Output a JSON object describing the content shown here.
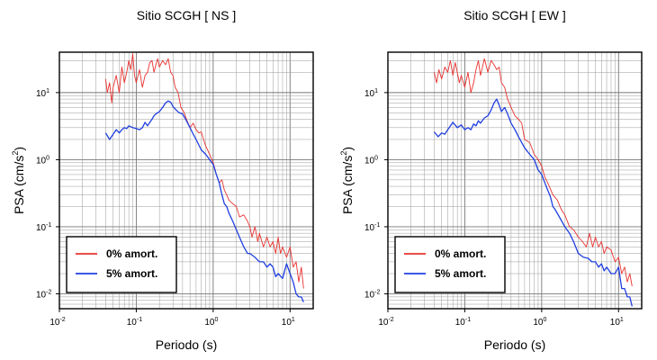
{
  "chart_data": [
    {
      "type": "line",
      "title": "Sitio SCGH [ NS ]",
      "xlabel": "Periodo (s)",
      "ylabel": "PSA (cm/s",
      "ylabel_sup": "2",
      "ylabel_tail": ")",
      "xscale": "log",
      "yscale": "log",
      "xlim": [
        0.01,
        20
      ],
      "ylim": [
        0.006,
        40
      ],
      "x_ticks": [
        {
          "base": "10",
          "exp": "-2"
        },
        {
          "base": "10",
          "exp": "-1"
        },
        {
          "base": "10",
          "exp": "0"
        },
        {
          "base": "10",
          "exp": "1"
        }
      ],
      "y_ticks": [
        {
          "base": "10",
          "exp": "-2"
        },
        {
          "base": "10",
          "exp": "-1"
        },
        {
          "base": "10",
          "exp": "0"
        },
        {
          "base": "10",
          "exp": "1"
        }
      ],
      "grid": true,
      "legend_position": "bottom-left",
      "series": [
        {
          "name": "0% amort.",
          "color": "#e8322f",
          "x": [
            0.04,
            0.042,
            0.045,
            0.048,
            0.05,
            0.055,
            0.06,
            0.065,
            0.07,
            0.075,
            0.08,
            0.085,
            0.09,
            0.095,
            0.1,
            0.11,
            0.12,
            0.13,
            0.14,
            0.15,
            0.16,
            0.17,
            0.18,
            0.19,
            0.2,
            0.22,
            0.24,
            0.26,
            0.28,
            0.3,
            0.32,
            0.35,
            0.38,
            0.42,
            0.45,
            0.5,
            0.55,
            0.6,
            0.65,
            0.7,
            0.75,
            0.8,
            0.9,
            1.0,
            1.1,
            1.2,
            1.3,
            1.4,
            1.5,
            1.6,
            1.8,
            2.0,
            2.2,
            2.5,
            2.8,
            3.0,
            3.2,
            3.5,
            3.8,
            4.0,
            4.5,
            5.0,
            5.5,
            6.0,
            6.5,
            7.0,
            7.5,
            8.0,
            9.0,
            10,
            11,
            12,
            13,
            14,
            15
          ],
          "y": [
            16,
            10,
            14,
            7,
            12,
            18,
            10,
            24,
            14,
            20,
            30,
            22,
            38,
            18,
            14,
            22,
            12,
            18,
            20,
            28,
            30,
            20,
            26,
            32,
            24,
            30,
            26,
            32,
            20,
            18,
            12,
            10,
            6,
            5,
            4,
            3,
            3.5,
            2.8,
            2.5,
            2.6,
            2.0,
            1.6,
            1.2,
            0.9,
            0.6,
            0.45,
            0.5,
            0.35,
            0.3,
            0.25,
            0.22,
            0.2,
            0.14,
            0.15,
            0.12,
            0.1,
            0.07,
            0.1,
            0.06,
            0.08,
            0.05,
            0.07,
            0.05,
            0.06,
            0.04,
            0.07,
            0.04,
            0.05,
            0.035,
            0.05,
            0.025,
            0.03,
            0.015,
            0.025,
            0.012
          ]
        },
        {
          "name": "5% amort.",
          "color": "#1f3fe0",
          "x": [
            0.04,
            0.045,
            0.05,
            0.055,
            0.06,
            0.065,
            0.07,
            0.075,
            0.08,
            0.09,
            0.1,
            0.11,
            0.12,
            0.13,
            0.14,
            0.15,
            0.16,
            0.17,
            0.18,
            0.19,
            0.2,
            0.22,
            0.24,
            0.26,
            0.28,
            0.3,
            0.33,
            0.36,
            0.4,
            0.45,
            0.5,
            0.55,
            0.6,
            0.7,
            0.8,
            0.9,
            1.0,
            1.1,
            1.2,
            1.3,
            1.4,
            1.5,
            1.6,
            1.8,
            2.0,
            2.2,
            2.5,
            2.8,
            3.0,
            3.5,
            4.0,
            4.5,
            5.0,
            5.5,
            6.0,
            6.5,
            7.0,
            8.0,
            9.0,
            10,
            11,
            12,
            13,
            14,
            15
          ],
          "y": [
            2.5,
            2.0,
            2.4,
            2.8,
            2.5,
            2.8,
            3.0,
            2.9,
            3.2,
            3.0,
            2.9,
            2.8,
            3.0,
            3.6,
            3.2,
            3.6,
            4.0,
            4.5,
            4.8,
            5.0,
            5.2,
            6.0,
            7.0,
            7.5,
            7.2,
            6.2,
            5.5,
            5.0,
            4.8,
            3.8,
            3.0,
            2.4,
            2.0,
            1.4,
            1.2,
            1.0,
            0.85,
            0.6,
            0.45,
            0.3,
            0.22,
            0.2,
            0.16,
            0.12,
            0.09,
            0.07,
            0.05,
            0.04,
            0.04,
            0.035,
            0.03,
            0.03,
            0.025,
            0.028,
            0.025,
            0.018,
            0.02,
            0.017,
            0.028,
            0.02,
            0.015,
            0.01,
            0.009,
            0.009,
            0.0075
          ]
        }
      ]
    },
    {
      "type": "line",
      "title": "Sitio SCGH [ EW ]",
      "xlabel": "Periodo (s)",
      "ylabel": "PSA (cm/s",
      "ylabel_sup": "2",
      "ylabel_tail": ")",
      "xscale": "log",
      "yscale": "log",
      "xlim": [
        0.01,
        20
      ],
      "ylim": [
        0.006,
        40
      ],
      "x_ticks": [
        {
          "base": "10",
          "exp": "-2"
        },
        {
          "base": "10",
          "exp": "-1"
        },
        {
          "base": "10",
          "exp": "0"
        },
        {
          "base": "10",
          "exp": "1"
        }
      ],
      "y_ticks": [
        {
          "base": "10",
          "exp": "-2"
        },
        {
          "base": "10",
          "exp": "-1"
        },
        {
          "base": "10",
          "exp": "0"
        },
        {
          "base": "10",
          "exp": "1"
        }
      ],
      "grid": true,
      "legend_position": "bottom-left",
      "series": [
        {
          "name": "0% amort.",
          "color": "#e8322f",
          "x": [
            0.04,
            0.043,
            0.046,
            0.05,
            0.055,
            0.06,
            0.065,
            0.07,
            0.075,
            0.08,
            0.085,
            0.09,
            0.1,
            0.11,
            0.12,
            0.13,
            0.14,
            0.15,
            0.16,
            0.17,
            0.18,
            0.2,
            0.22,
            0.24,
            0.26,
            0.28,
            0.3,
            0.33,
            0.36,
            0.4,
            0.45,
            0.5,
            0.55,
            0.6,
            0.7,
            0.8,
            0.9,
            1.0,
            1.1,
            1.2,
            1.4,
            1.6,
            1.8,
            2.0,
            2.3,
            2.6,
            3.0,
            3.4,
            3.8,
            4.2,
            4.6,
            5.0,
            5.5,
            6.0,
            6.5,
            7.0,
            8.0,
            9.0,
            10,
            11,
            12,
            13,
            14,
            15
          ],
          "y": [
            20,
            14,
            22,
            16,
            24,
            20,
            30,
            18,
            28,
            20,
            14,
            18,
            12,
            20,
            10,
            14,
            22,
            30,
            18,
            24,
            32,
            20,
            30,
            26,
            22,
            24,
            14,
            12,
            8,
            6,
            4.5,
            4.0,
            3.5,
            2.0,
            1.8,
            1.2,
            1.0,
            0.8,
            0.55,
            0.45,
            0.3,
            0.25,
            0.18,
            0.15,
            0.1,
            0.09,
            0.07,
            0.06,
            0.05,
            0.08,
            0.05,
            0.07,
            0.05,
            0.06,
            0.04,
            0.05,
            0.045,
            0.03,
            0.035,
            0.02,
            0.025,
            0.015,
            0.02,
            0.013
          ]
        },
        {
          "name": "5% amort.",
          "color": "#1f3fe0",
          "x": [
            0.04,
            0.045,
            0.05,
            0.055,
            0.06,
            0.07,
            0.08,
            0.09,
            0.1,
            0.11,
            0.12,
            0.13,
            0.14,
            0.15,
            0.16,
            0.18,
            0.2,
            0.22,
            0.24,
            0.26,
            0.28,
            0.3,
            0.33,
            0.36,
            0.4,
            0.45,
            0.5,
            0.55,
            0.6,
            0.7,
            0.8,
            0.9,
            1.0,
            1.1,
            1.2,
            1.3,
            1.4,
            1.5,
            1.7,
            2.0,
            2.3,
            2.6,
            3.0,
            3.5,
            4.0,
            4.5,
            5.0,
            5.5,
            6.0,
            6.5,
            7.0,
            8.0,
            9.0,
            10,
            11,
            12,
            13,
            14,
            15
          ],
          "y": [
            2.6,
            2.2,
            2.5,
            2.4,
            2.8,
            3.6,
            3.0,
            3.3,
            2.8,
            3.0,
            2.8,
            3.4,
            3.2,
            3.8,
            3.5,
            4.2,
            4.5,
            5.5,
            7.0,
            8.0,
            6.5,
            5.2,
            6.0,
            4.8,
            3.5,
            2.8,
            2.2,
            1.8,
            1.5,
            1.2,
            1.0,
            0.7,
            0.6,
            0.45,
            0.35,
            0.28,
            0.2,
            0.18,
            0.14,
            0.1,
            0.08,
            0.06,
            0.04,
            0.035,
            0.034,
            0.03,
            0.03,
            0.025,
            0.028,
            0.022,
            0.025,
            0.02,
            0.02,
            0.025,
            0.012,
            0.012,
            0.009,
            0.009,
            0.0065
          ]
        }
      ]
    }
  ]
}
